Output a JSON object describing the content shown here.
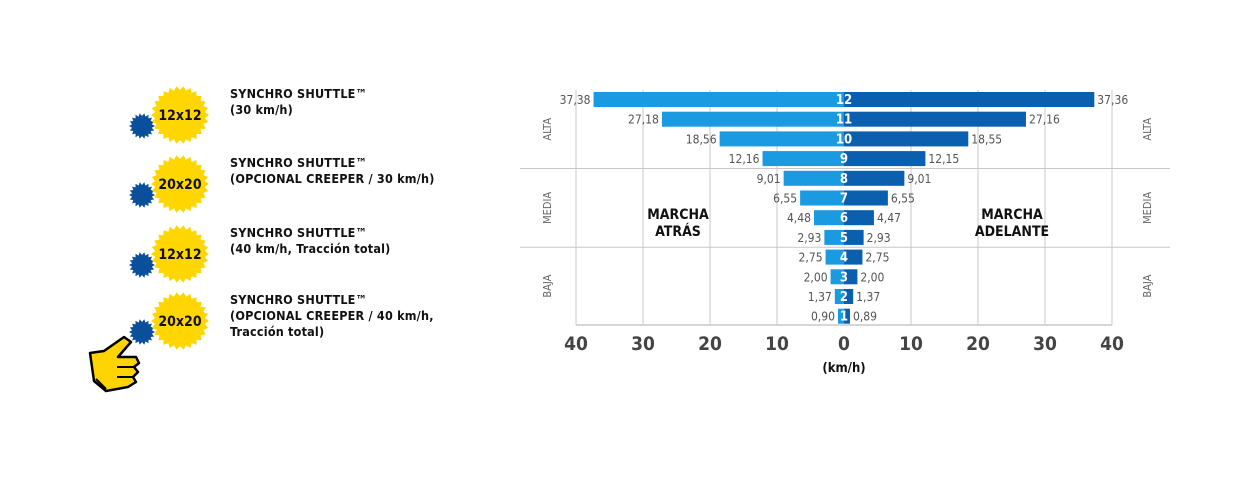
{
  "colors": {
    "reverse": "#1a9ae0",
    "forward": "#0a5fae",
    "gear_yellow": "#ffd600",
    "gear_blue": "#0a4f9c",
    "grid": "#c8c8c8",
    "text": "#555555"
  },
  "options": [
    {
      "gears": "12x12",
      "label": "SYNCHRO SHUTTLE™\n(30 km/h)",
      "icon": "gear-icon"
    },
    {
      "gears": "20x20",
      "label": "SYNCHRO SHUTTLE™\n(OPCIONAL CREEPER / 30 km/h)",
      "icon": "gear-icon"
    },
    {
      "gears": "12x12",
      "label": "SYNCHRO SHUTTLE™\n(40 km/h, Tracción total)",
      "icon": "gear-icon"
    },
    {
      "gears": "20x20",
      "label": "SYNCHRO SHUTTLE™\n(OPCIONAL CREEPER / 40 km/h,\nTracción total)",
      "icon": "gear-icon"
    }
  ],
  "pointer": {
    "icon": "hand-pointer-icon"
  },
  "chart_data": {
    "type": "bar",
    "orientation": "horizontal-diverging",
    "categories": [
      "12",
      "11",
      "10",
      "9",
      "8",
      "7",
      "6",
      "5",
      "4",
      "3",
      "2",
      "1"
    ],
    "series": [
      {
        "name": "MARCHA ATRÁS",
        "values": [
          37.38,
          27.18,
          18.56,
          12.16,
          9.01,
          6.55,
          4.48,
          2.93,
          2.75,
          2.0,
          1.37,
          0.9
        ],
        "labels": [
          "37,38",
          "27,18",
          "18,56",
          "12,16",
          "9,01",
          "6,55",
          "4,48",
          "2,93",
          "2,75",
          "2,00",
          "1,37",
          "0,90"
        ]
      },
      {
        "name": "MARCHA ADELANTE",
        "values": [
          37.36,
          27.16,
          18.55,
          12.15,
          9.01,
          6.55,
          4.47,
          2.93,
          2.75,
          2.0,
          1.37,
          0.89
        ],
        "labels": [
          "37,36",
          "27,16",
          "18,55",
          "12,15",
          "9,01",
          "6,55",
          "4,47",
          "2,93",
          "2,75",
          "2,00",
          "1,37",
          "0,89"
        ]
      }
    ],
    "series_labels": {
      "left": "MARCHA\nATRÁS",
      "right": "MARCHA\nADELANTE"
    },
    "ranges": [
      {
        "label": "ALTA",
        "from_gear": 12,
        "to_gear": 9
      },
      {
        "label": "MEDIA",
        "from_gear": 8,
        "to_gear": 5
      },
      {
        "label": "BAJA",
        "from_gear": 4,
        "to_gear": 1
      }
    ],
    "x_ticks": [
      {
        "value": -40,
        "label": "40"
      },
      {
        "value": -30,
        "label": "30"
      },
      {
        "value": -20,
        "label": "20"
      },
      {
        "value": -10,
        "label": "10"
      },
      {
        "value": 0,
        "label": "0"
      },
      {
        "value": 10,
        "label": "10"
      },
      {
        "value": 20,
        "label": "20"
      },
      {
        "value": 30,
        "label": "30"
      },
      {
        "value": 40,
        "label": "40"
      }
    ],
    "xlabel": "(km/h)",
    "xlim": [
      -40,
      40
    ],
    "grid": true
  }
}
